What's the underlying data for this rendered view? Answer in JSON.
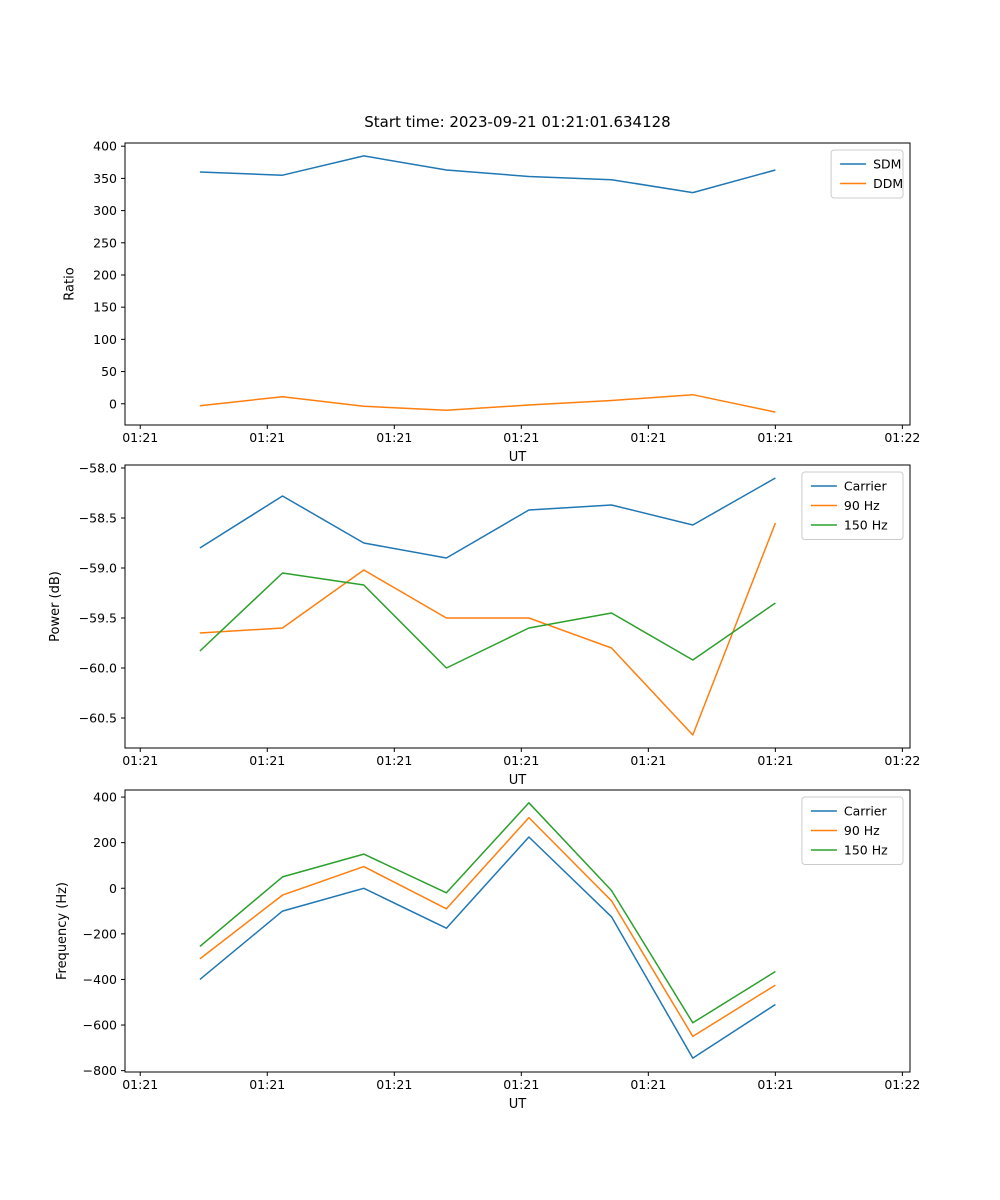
{
  "figure": {
    "title": "Start time: 2023-09-21 01:21:01.634128",
    "background": "#ffffff"
  },
  "colors": {
    "blue": "#1f77b4",
    "orange": "#ff7f0e",
    "green": "#2ca02c"
  },
  "chart_data": [
    {
      "id": "ratio",
      "type": "line",
      "title": "Start time: 2023-09-21 01:21:01.634128",
      "xlabel": "UT",
      "ylabel": "Ratio",
      "legend_position": "upper right",
      "grid": false,
      "xlim": [
        -0.12,
        6.06
      ],
      "ylim": [
        -33,
        405
      ],
      "x_tick_values": [
        0,
        1,
        2,
        3,
        4,
        5,
        6
      ],
      "x_tick_labels": [
        "01:21",
        "01:21",
        "01:21",
        "01:21",
        "01:21",
        "01:21",
        "01:22"
      ],
      "y_tick_values": [
        0,
        50,
        100,
        150,
        200,
        250,
        300,
        350,
        400
      ],
      "y_tick_labels": [
        "0",
        "50",
        "100",
        "150",
        "200",
        "250",
        "300",
        "350",
        "400"
      ],
      "x": [
        0.47,
        1.12,
        1.76,
        2.41,
        3.06,
        3.71,
        4.35,
        5.0
      ],
      "series": [
        {
          "name": "SDM",
          "color": "#1f77b4",
          "values": [
            360,
            355,
            385,
            363,
            353,
            348,
            328,
            363
          ]
        },
        {
          "name": "DDM",
          "color": "#ff7f0e",
          "values": [
            -3,
            11,
            -4,
            -10,
            -2,
            5,
            14,
            -13
          ]
        }
      ]
    },
    {
      "id": "power",
      "type": "line",
      "title": "",
      "xlabel": "UT",
      "ylabel": "Power (dB)",
      "legend_position": "upper right",
      "grid": false,
      "xlim": [
        -0.12,
        6.06
      ],
      "ylim": [
        -60.8,
        -57.97
      ],
      "x_tick_values": [
        0,
        1,
        2,
        3,
        4,
        5,
        6
      ],
      "x_tick_labels": [
        "01:21",
        "01:21",
        "01:21",
        "01:21",
        "01:21",
        "01:21",
        "01:22"
      ],
      "y_tick_values": [
        -58.0,
        -58.5,
        -59.0,
        -59.5,
        -60.0,
        -60.5
      ],
      "y_tick_labels": [
        "−58.0",
        "−58.5",
        "−59.0",
        "−59.5",
        "−60.0",
        "−60.5"
      ],
      "x": [
        0.47,
        1.12,
        1.76,
        2.41,
        3.06,
        3.71,
        4.35,
        5.0
      ],
      "series": [
        {
          "name": "Carrier",
          "color": "#1f77b4",
          "values": [
            -58.8,
            -58.28,
            -58.75,
            -58.9,
            -58.42,
            -58.37,
            -58.57,
            -58.1
          ]
        },
        {
          "name": "90 Hz",
          "color": "#ff7f0e",
          "values": [
            -59.65,
            -59.6,
            -59.02,
            -59.5,
            -59.5,
            -59.8,
            -60.67,
            -58.55
          ]
        },
        {
          "name": "150 Hz",
          "color": "#2ca02c",
          "values": [
            -59.83,
            -59.05,
            -59.17,
            -60.0,
            -59.6,
            -59.45,
            -59.92,
            -59.35
          ]
        }
      ]
    },
    {
      "id": "frequency",
      "type": "line",
      "title": "",
      "xlabel": "UT",
      "ylabel": "Frequency (Hz)",
      "legend_position": "upper right",
      "grid": false,
      "xlim": [
        -0.12,
        6.06
      ],
      "ylim": [
        -806,
        431
      ],
      "x_tick_values": [
        0,
        1,
        2,
        3,
        4,
        5,
        6
      ],
      "x_tick_labels": [
        "01:21",
        "01:21",
        "01:21",
        "01:21",
        "01:21",
        "01:21",
        "01:22"
      ],
      "y_tick_values": [
        -800,
        -600,
        -400,
        -200,
        0,
        200,
        400
      ],
      "y_tick_labels": [
        "−800",
        "−600",
        "−400",
        "−200",
        "0",
        "200",
        "400"
      ],
      "x": [
        0.47,
        1.12,
        1.76,
        2.41,
        3.06,
        3.71,
        4.35,
        5.0
      ],
      "series": [
        {
          "name": "Carrier",
          "color": "#1f77b4",
          "values": [
            -400,
            -100,
            0,
            -175,
            225,
            -125,
            -745,
            -510
          ]
        },
        {
          "name": "90 Hz",
          "color": "#ff7f0e",
          "values": [
            -310,
            -30,
            95,
            -90,
            310,
            -55,
            -650,
            -425
          ]
        },
        {
          "name": "150 Hz",
          "color": "#2ca02c",
          "values": [
            -255,
            50,
            150,
            -20,
            375,
            -10,
            -590,
            -365
          ]
        }
      ]
    }
  ]
}
